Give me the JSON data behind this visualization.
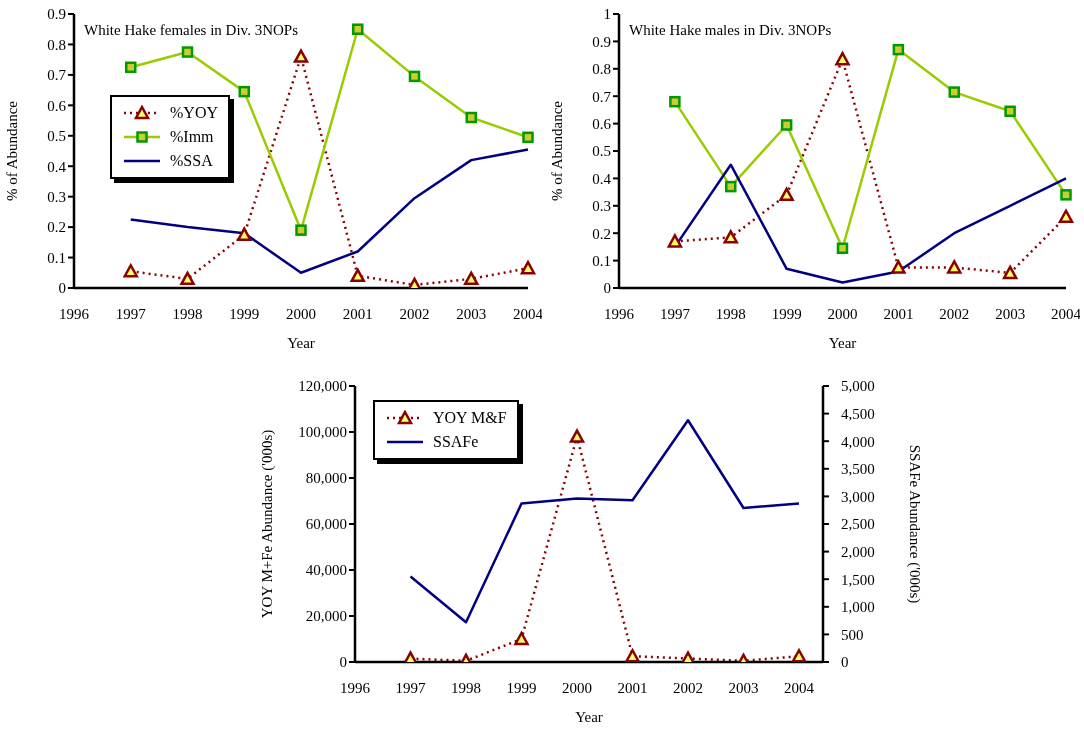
{
  "chart_data": [
    {
      "type": "line",
      "title": "White Hake females in Div. 3NOPs",
      "xlabel": "Year",
      "ylabel": "% of Abundance",
      "categories": [
        "1996",
        "1997",
        "1998",
        "1999",
        "2000",
        "2001",
        "2002",
        "2003",
        "2004"
      ],
      "ylim": [
        0,
        0.9
      ],
      "yticks": [
        0,
        0.1,
        0.2,
        0.3,
        0.4,
        0.5,
        0.6,
        0.7,
        0.8,
        0.9
      ],
      "grid": false,
      "legend": "left",
      "series": [
        {
          "name": "%YOY",
          "color": "#8b0000",
          "marker": "triangle",
          "line_style": "dotted",
          "values": [
            null,
            0.055,
            0.03,
            0.175,
            0.76,
            0.04,
            0.01,
            0.03,
            0.065
          ]
        },
        {
          "name": "%Imm",
          "color": "#99cc00",
          "marker": "square",
          "line_style": "solid",
          "values": [
            null,
            0.725,
            0.775,
            0.645,
            0.19,
            0.85,
            0.695,
            0.56,
            0.495
          ]
        },
        {
          "name": "%SSA",
          "color": "#000080",
          "marker": "none",
          "line_style": "solid",
          "values": [
            null,
            0.225,
            0.2,
            0.18,
            0.05,
            0.12,
            0.295,
            0.42,
            0.455
          ]
        }
      ]
    },
    {
      "type": "line",
      "title": "White Hake males in Div. 3NOPs",
      "xlabel": "Year",
      "ylabel": "% of Abundance",
      "categories": [
        "1996",
        "1997",
        "1998",
        "1999",
        "2000",
        "2001",
        "2002",
        "2003",
        "2004"
      ],
      "ylim": [
        0,
        1
      ],
      "yticks": [
        0,
        0.1,
        0.2,
        0.3,
        0.4,
        0.5,
        0.6,
        0.7,
        0.8,
        0.9,
        1
      ],
      "grid": false,
      "legend": false,
      "series": [
        {
          "color": "#8b0000",
          "marker": "triangle",
          "line_style": "dotted",
          "values": [
            null,
            0.17,
            0.185,
            0.34,
            0.835,
            0.075,
            0.075,
            0.055,
            0.26
          ]
        },
        {
          "color": "#99cc00",
          "marker": "square",
          "line_style": "solid",
          "values": [
            null,
            0.68,
            0.37,
            0.595,
            0.145,
            0.87,
            0.715,
            0.645,
            0.34
          ]
        },
        {
          "color": "#000080",
          "marker": "none",
          "line_style": "solid",
          "values": [
            null,
            0.15,
            0.45,
            0.07,
            0.02,
            0.06,
            0.2,
            0.3,
            0.4
          ]
        }
      ]
    },
    {
      "type": "line",
      "xlabel": "Year",
      "ylabel": "YOY M+Fe Abundance ('000s)",
      "y2label": "SSAFe Abundance ('000s)",
      "categories": [
        "1996",
        "1997",
        "1998",
        "1999",
        "2000",
        "2001",
        "2002",
        "2003",
        "2004"
      ],
      "ylim": [
        0,
        120000
      ],
      "yticks": [
        {
          "value": 0,
          "label": "0"
        },
        {
          "value": 20000,
          "label": "20,000"
        },
        {
          "value": 40000,
          "label": "40,000"
        },
        {
          "value": 60000,
          "label": "60,000"
        },
        {
          "value": 80000,
          "label": "80,000"
        },
        {
          "value": 100000,
          "label": "100,000"
        },
        {
          "value": 120000,
          "label": "120,000"
        }
      ],
      "y2lim": [
        0,
        5000
      ],
      "y2ticks": [
        {
          "value": 0,
          "label": "0"
        },
        500,
        {
          "value": 1000,
          "label": "1,000"
        },
        {
          "value": 1500,
          "label": "1,500"
        },
        {
          "value": 2000,
          "label": "2,000"
        },
        {
          "value": 2500,
          "label": "2,500"
        },
        {
          "value": 3000,
          "label": "3,000"
        },
        {
          "value": 3500,
          "label": "3,500"
        },
        {
          "value": 4000,
          "label": "4,000"
        },
        {
          "value": 4500,
          "label": "4,500"
        },
        {
          "value": 5000,
          "label": "5,000"
        }
      ],
      "grid": false,
      "legend": "top left",
      "series": [
        {
          "name": "YOY M&F",
          "color": "#8b0000",
          "marker": "triangle",
          "line_style": "dotted",
          "values": [
            null,
            1500,
            500,
            10000,
            98000,
            2500,
            1500,
            500,
            2500
          ]
        },
        {
          "name": "SSAFe",
          "color": "#000080",
          "marker": "none",
          "line_style": "solid",
          "axis": "y2",
          "values": [
            null,
            1550,
            720,
            2870,
            2960,
            2930,
            4380,
            2790,
            2870
          ]
        }
      ]
    }
  ]
}
